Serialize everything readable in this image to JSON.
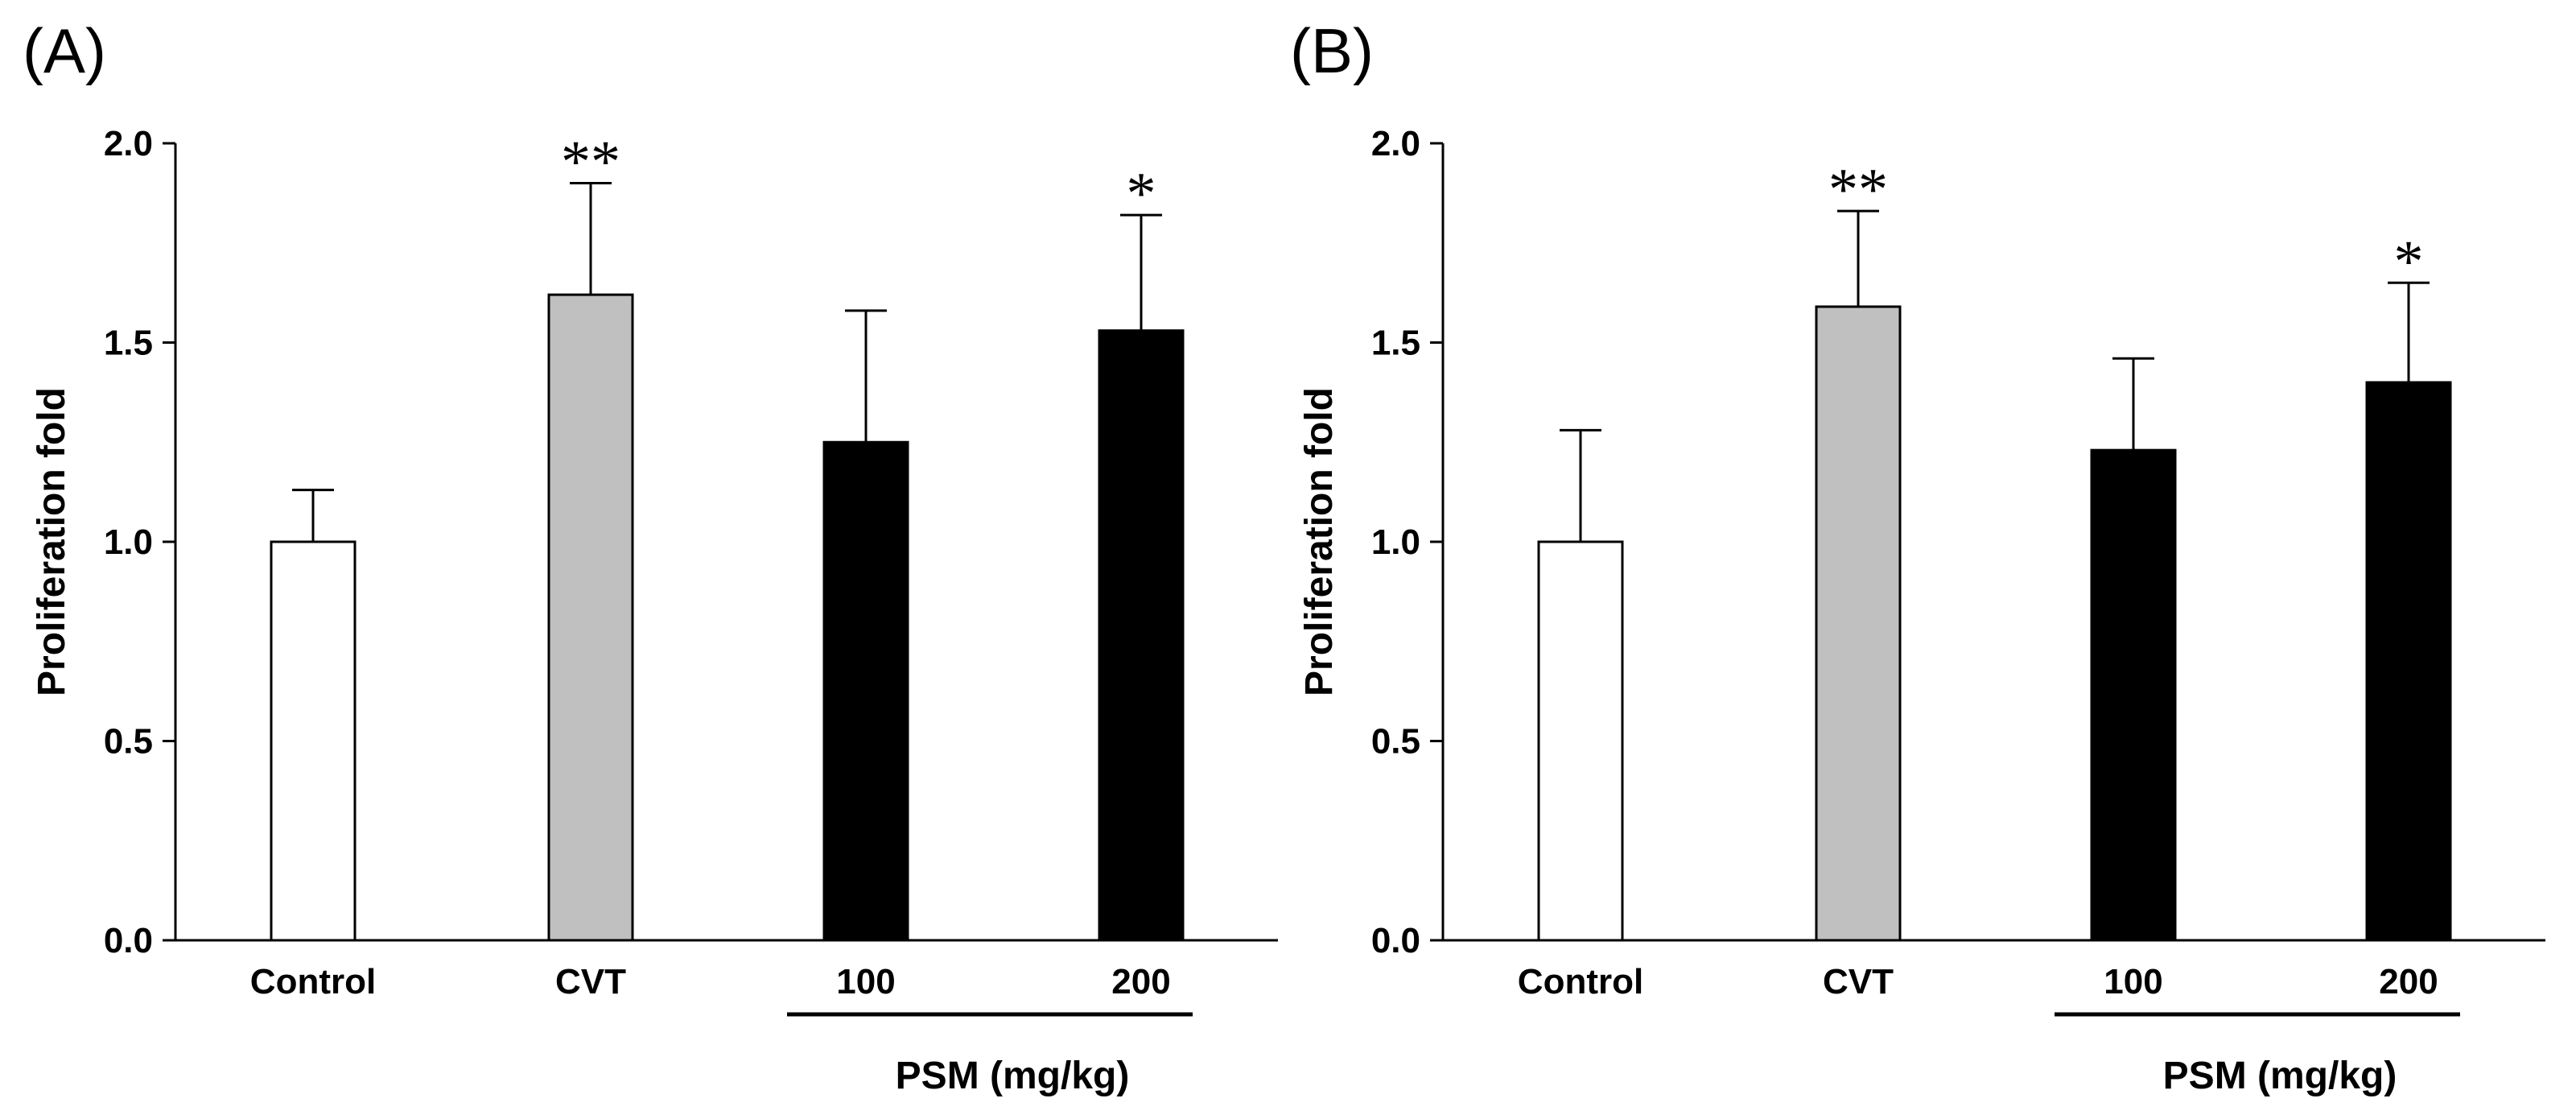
{
  "chart_data": [
    {
      "panel_label": "(A)",
      "type": "bar",
      "ylabel": "Proliferation fold",
      "ylim": [
        0,
        2.0
      ],
      "yticks": [
        "0.0",
        "0.5",
        "1.0",
        "1.5",
        "2.0"
      ],
      "categories": [
        "Control",
        "CVT",
        "100",
        "200"
      ],
      "values": [
        1.0,
        1.62,
        1.25,
        1.53
      ],
      "errors": [
        0.13,
        0.28,
        0.33,
        0.29
      ],
      "significance": [
        "",
        "**",
        "",
        "*"
      ],
      "bar_colors": [
        "#ffffff",
        "#c0c0c0",
        "#000000",
        "#000000"
      ],
      "group_label": "PSM (mg/kg)",
      "group_members": [
        2,
        3
      ]
    },
    {
      "panel_label": "(B)",
      "type": "bar",
      "ylabel": "Proliferation fold",
      "ylim": [
        0,
        2.0
      ],
      "yticks": [
        "0.0",
        "0.5",
        "1.0",
        "1.5",
        "2.0"
      ],
      "categories": [
        "Control",
        "CVT",
        "100",
        "200"
      ],
      "values": [
        1.0,
        1.59,
        1.23,
        1.4
      ],
      "errors": [
        0.28,
        0.24,
        0.23,
        0.25
      ],
      "significance": [
        "",
        "**",
        "",
        "*"
      ],
      "bar_colors": [
        "#ffffff",
        "#c0c0c0",
        "#000000",
        "#000000"
      ],
      "group_label": "PSM (mg/kg)",
      "group_members": [
        2,
        3
      ]
    }
  ]
}
